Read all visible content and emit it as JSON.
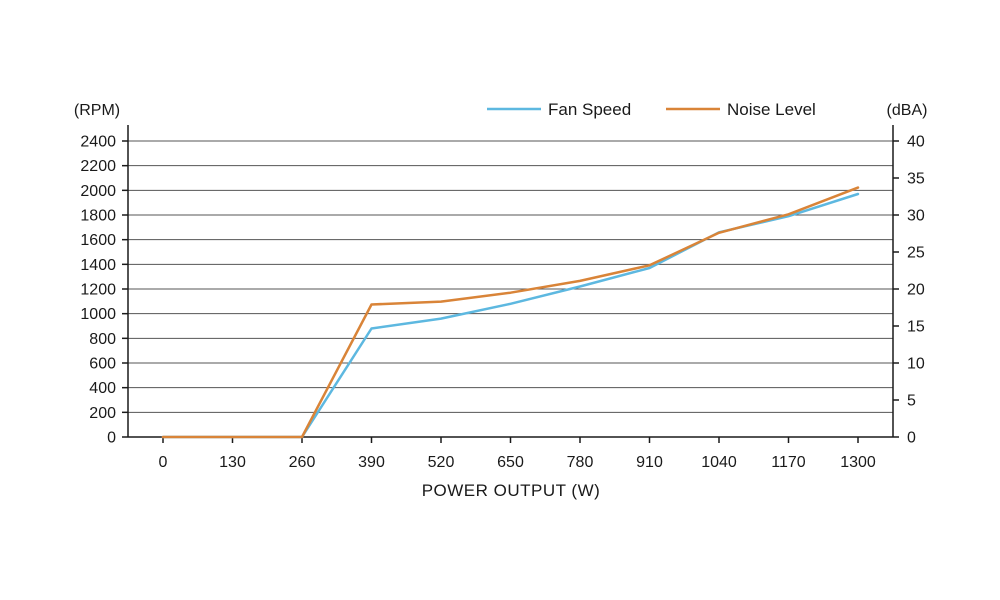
{
  "chart_data": {
    "type": "line",
    "title": "",
    "xlabel": "POWER OUTPUT (W)",
    "ylabel_left": "(RPM)",
    "ylabel_right": "(dBA)",
    "x": [
      0,
      130,
      260,
      390,
      520,
      650,
      780,
      910,
      1040,
      1170,
      1300
    ],
    "xticks": [
      "0",
      "130",
      "260",
      "390",
      "520",
      "650",
      "780",
      "910",
      "1040",
      "1170",
      "1300"
    ],
    "ylim_left": [
      0,
      2400
    ],
    "yticks_left": [
      "0",
      "200",
      "400",
      "600",
      "800",
      "1000",
      "1200",
      "1400",
      "1600",
      "1800",
      "2000",
      "2200",
      "2400"
    ],
    "ylim_right": [
      0,
      40
    ],
    "yticks_right": [
      "0",
      "5",
      "10",
      "15",
      "20",
      "25",
      "30",
      "35",
      "40"
    ],
    "grid": true,
    "legend_position": "top-right",
    "series": [
      {
        "name": "Fan Speed",
        "axis": "left",
        "color": "#5db8e0",
        "values": [
          0,
          0,
          0,
          880,
          960,
          1080,
          1220,
          1370,
          1660,
          1790,
          1970
        ]
      },
      {
        "name": "Noise Level",
        "axis": "right",
        "color": "#d98438",
        "values": [
          0,
          0,
          0,
          17.9,
          18.3,
          19.5,
          21.1,
          23.2,
          27.6,
          30.1,
          33.7
        ]
      }
    ]
  }
}
